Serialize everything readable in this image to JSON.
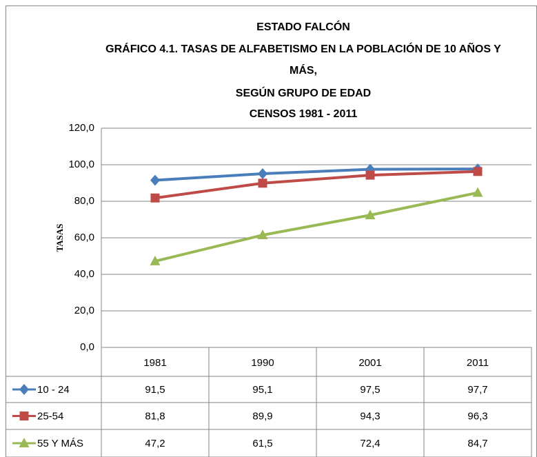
{
  "chart_data": {
    "type": "line",
    "title": [
      "ESTADO FALCÓN",
      "GRÁFICO 4.1.  TASAS DE ALFABETISMO EN LA POBLACIÓN DE 10 AÑOS Y",
      "MÁS,",
      "SEGÚN GRUPO DE EDAD",
      "CENSOS 1981 - 2011"
    ],
    "y_label": "TASAS",
    "categories": [
      "1981",
      "1990",
      "2001",
      "2011"
    ],
    "series": [
      {
        "name": "10 - 24",
        "color": "#4a7ebb",
        "marker": "diamond",
        "values": [
          91.5,
          95.1,
          97.5,
          97.7
        ],
        "value_labels": [
          "91,5",
          "95,1",
          "97,5",
          "97,7"
        ]
      },
      {
        "name": "25-54",
        "color": "#be4b48",
        "marker": "square",
        "values": [
          81.8,
          89.9,
          94.3,
          96.3
        ],
        "value_labels": [
          "81,8",
          "89,9",
          "94,3",
          "96,3"
        ]
      },
      {
        "name": "55 Y MÁS",
        "color": "#98b954",
        "marker": "triangle",
        "values": [
          47.2,
          61.5,
          72.4,
          84.7
        ],
        "value_labels": [
          "47,2",
          "61,5",
          "72,4",
          "84,7"
        ]
      }
    ],
    "ylim": [
      0,
      120
    ],
    "yticks": [
      {
        "value": 0,
        "label": "0,0"
      },
      {
        "value": 20,
        "label": "20,0"
      },
      {
        "value": 40,
        "label": "40,0"
      },
      {
        "value": 60,
        "label": "60,0"
      },
      {
        "value": 80,
        "label": "80,0"
      },
      {
        "value": 100,
        "label": "100,0"
      },
      {
        "value": 120,
        "label": "120,0"
      }
    ],
    "grid": true,
    "data_table": true
  }
}
